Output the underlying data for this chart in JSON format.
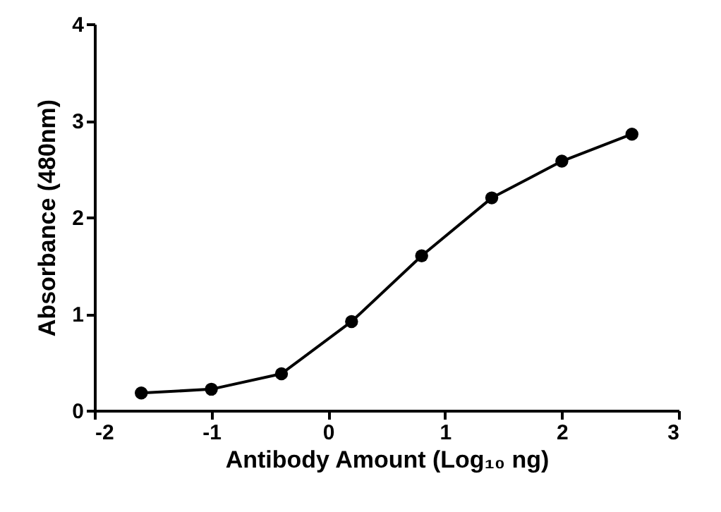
{
  "chart_data": {
    "type": "line",
    "xlabel": "Antibody Amount (Log₁₀ ng)",
    "ylabel": "Absorbance (480nm)",
    "x": [
      -1.6,
      -1.0,
      -0.4,
      0.2,
      0.8,
      1.4,
      2.0,
      2.6
    ],
    "series": [
      {
        "color": "#000000",
        "values": [
          0.18,
          0.22,
          0.38,
          0.92,
          1.6,
          2.2,
          2.58,
          2.86
        ]
      }
    ],
    "xlim": [
      -2,
      3
    ],
    "xticks": [
      -2,
      -1,
      0,
      1,
      2,
      3
    ],
    "ylim": [
      0,
      4
    ],
    "yticks": [
      0,
      1,
      2,
      3,
      4
    ],
    "grid": false,
    "marker": "circle",
    "line_style": "solid"
  }
}
